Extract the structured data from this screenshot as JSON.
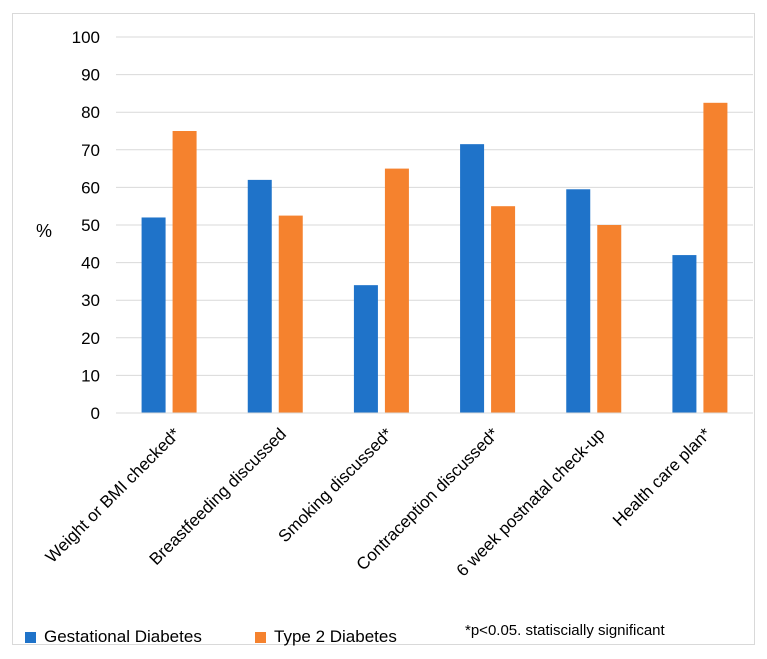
{
  "chart_data": {
    "type": "bar",
    "title": "",
    "xlabel": "",
    "ylabel": "%",
    "ylim": [
      0,
      100
    ],
    "yticks": [
      0,
      10,
      20,
      30,
      40,
      50,
      60,
      70,
      80,
      90,
      100
    ],
    "grid": true,
    "legend_position": "bottom-left",
    "categories": [
      "Weight or BMI checked*",
      "Breastfeeding discussed",
      "Smoking  discussed*",
      "Contraception discussed*",
      "6 week postnatal check-up",
      "Health care plan*"
    ],
    "series": [
      {
        "name": "Gestational Diabetes",
        "color": "#1f73c9",
        "values": [
          52,
          62,
          34,
          71.5,
          59.5,
          42
        ]
      },
      {
        "name": "Type 2 Diabetes",
        "color": "#f5822e",
        "values": [
          75,
          52.5,
          65,
          55,
          50,
          82.5
        ]
      }
    ]
  },
  "footnote": "*p<0.05. statiscially significant"
}
